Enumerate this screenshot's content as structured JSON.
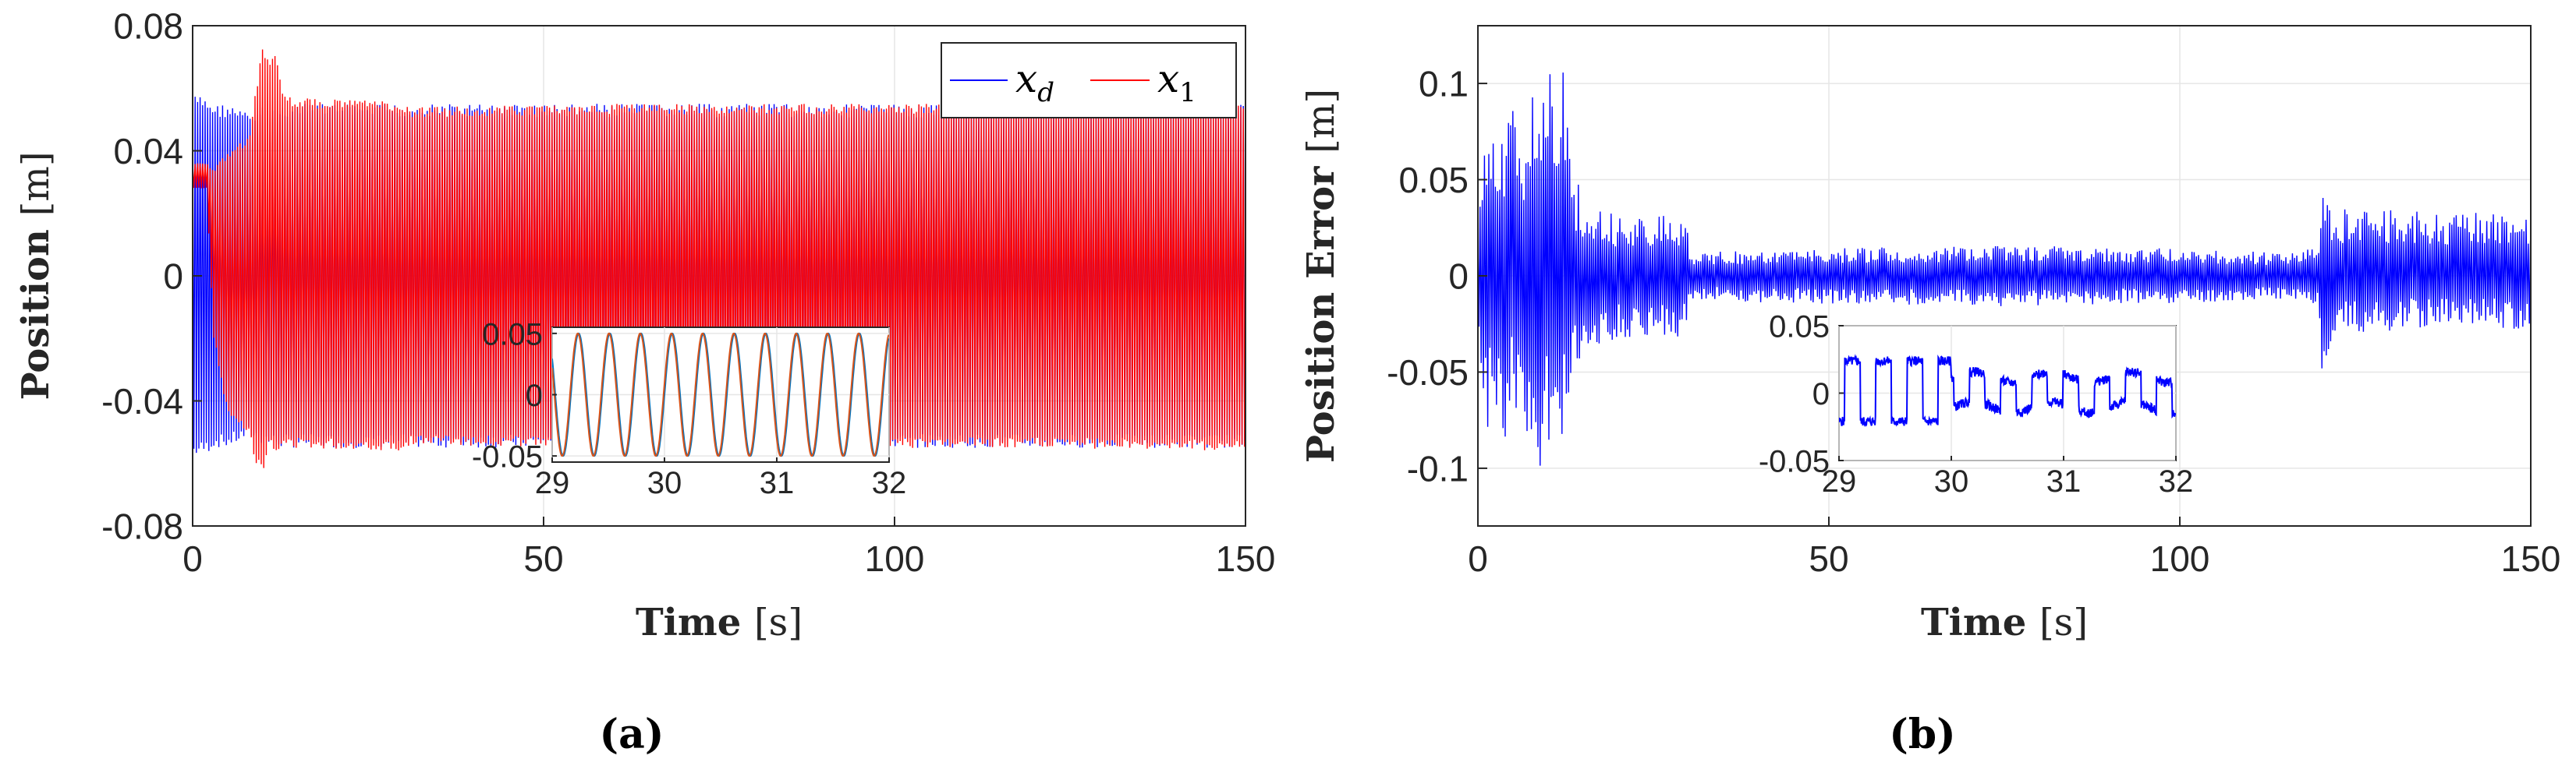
{
  "chart_data": [
    {
      "panel": "a",
      "panel_label": "(a)",
      "type": "line",
      "xlabel": "Time",
      "xunit": "[s]",
      "ylabel": "Position",
      "yunit": "[m]",
      "xlim": [
        0,
        150
      ],
      "ylim": [
        -0.08,
        0.08
      ],
      "x_ticks": [
        0,
        50,
        100,
        150
      ],
      "x_tick_labels": [
        "0",
        "50",
        "100",
        "150"
      ],
      "y_ticks": [
        -0.08,
        -0.04,
        0,
        0.04,
        0.08
      ],
      "y_tick_labels": [
        "-0.08",
        "-0.04",
        "0",
        "0.04",
        "0.08"
      ],
      "grid": true,
      "legend": {
        "placement": "top-right"
      },
      "series": [
        {
          "name": "x_d",
          "color": "#0000ff",
          "envelope_t": [
            0,
            2,
            3,
            5,
            8,
            10,
            12,
            15,
            30,
            60,
            90,
            120,
            150
          ],
          "envelope_upper": [
            0.058,
            0.057,
            0.055,
            0.055,
            0.052,
            0.054,
            0.055,
            0.055,
            0.055,
            0.055,
            0.055,
            0.055,
            0.055
          ],
          "envelope_lower": [
            -0.058,
            -0.057,
            -0.055,
            -0.055,
            -0.052,
            -0.054,
            -0.055,
            -0.055,
            -0.055,
            -0.055,
            -0.055,
            -0.055,
            -0.055
          ]
        },
        {
          "name": "x_1",
          "color": "#ff0000",
          "envelope_t": [
            0,
            2,
            3,
            5,
            8,
            9,
            10,
            11,
            12,
            13,
            15,
            30,
            31,
            60,
            90,
            120,
            150
          ],
          "envelope_upper": [
            0.036,
            0.036,
            0.034,
            0.04,
            0.045,
            0.06,
            0.074,
            0.07,
            0.072,
            0.058,
            0.057,
            0.056,
            0.054,
            0.055,
            0.055,
            0.055,
            0.056
          ],
          "envelope_lower": [
            0.028,
            0.028,
            -0.02,
            -0.045,
            -0.05,
            -0.06,
            -0.063,
            -0.055,
            -0.058,
            -0.055,
            -0.055,
            -0.056,
            -0.054,
            -0.055,
            -0.055,
            -0.055,
            -0.056
          ]
        }
      ],
      "inset": {
        "xlim": [
          29,
          32
        ],
        "ylim": [
          -0.055,
          0.055
        ],
        "x_ticks": [
          29,
          30,
          31,
          32
        ],
        "x_tick_labels": [
          "29",
          "30",
          "31",
          "32"
        ],
        "y_ticks": [
          -0.05,
          0,
          0.05
        ],
        "y_tick_labels": [
          "-0.05",
          "0",
          "0.05"
        ],
        "signal": {
          "amplitude": 0.05,
          "cycles_per_second": 3.6,
          "series_colors": [
            "#0072bd",
            "#d95319"
          ]
        }
      }
    },
    {
      "panel": "b",
      "panel_label": "(b)",
      "type": "line",
      "xlabel": "Time",
      "xunit": "[s]",
      "ylabel": "Position Error",
      "yunit": "[m]",
      "xlim": [
        0,
        150
      ],
      "ylim": [
        -0.13,
        0.13
      ],
      "x_ticks": [
        0,
        50,
        100,
        150
      ],
      "x_tick_labels": [
        "0",
        "50",
        "100",
        "150"
      ],
      "y_ticks": [
        -0.1,
        -0.05,
        0,
        0.05,
        0.1
      ],
      "y_tick_labels": [
        "-0.1",
        "-0.05",
        "0",
        "0.05",
        "0.1"
      ],
      "grid": true,
      "series": [
        {
          "color": "#0000ff",
          "envelope_t": [
            0,
            1,
            2,
            3,
            4,
            5,
            6,
            7,
            8,
            9,
            10,
            11,
            12,
            14,
            16,
            20,
            29.9,
            30.1,
            40,
            60,
            80,
            100,
            115,
            119.9,
            120,
            120.5,
            121,
            122,
            150
          ],
          "envelope_upper": [
            0.02,
            0.09,
            0.08,
            0.09,
            0.07,
            0.1,
            0.09,
            0.08,
            0.11,
            0.07,
            0.13,
            0.06,
            0.11,
            0.05,
            0.035,
            0.032,
            0.032,
            0.012,
            0.014,
            0.015,
            0.016,
            0.014,
            0.012,
            0.015,
            0.045,
            0.065,
            0.04,
            0.035,
            0.032
          ],
          "envelope_lower": [
            -0.02,
            -0.09,
            -0.08,
            -0.07,
            -0.1,
            -0.07,
            -0.09,
            -0.1,
            -0.08,
            -0.105,
            -0.09,
            -0.06,
            -0.085,
            -0.05,
            -0.04,
            -0.032,
            -0.032,
            -0.012,
            -0.014,
            -0.015,
            -0.016,
            -0.014,
            -0.012,
            -0.015,
            -0.045,
            -0.06,
            -0.04,
            -0.03,
            -0.028
          ]
        }
      ],
      "inset": {
        "xlim": [
          29,
          32
        ],
        "ylim": [
          -0.05,
          0.05
        ],
        "x_ticks": [
          29,
          30,
          31,
          32
        ],
        "x_tick_labels": [
          "29",
          "30",
          "31",
          "32"
        ],
        "y_ticks": [
          -0.05,
          0,
          0.05
        ],
        "y_tick_labels": [
          "-0.05",
          "0",
          "0.05"
        ],
        "signal": {
          "color": "#0000ff",
          "square_amplitude_before": 0.028,
          "square_amplitude_after": 0.014,
          "switch_time": 30,
          "cycles_per_second": 3.6
        }
      }
    }
  ]
}
